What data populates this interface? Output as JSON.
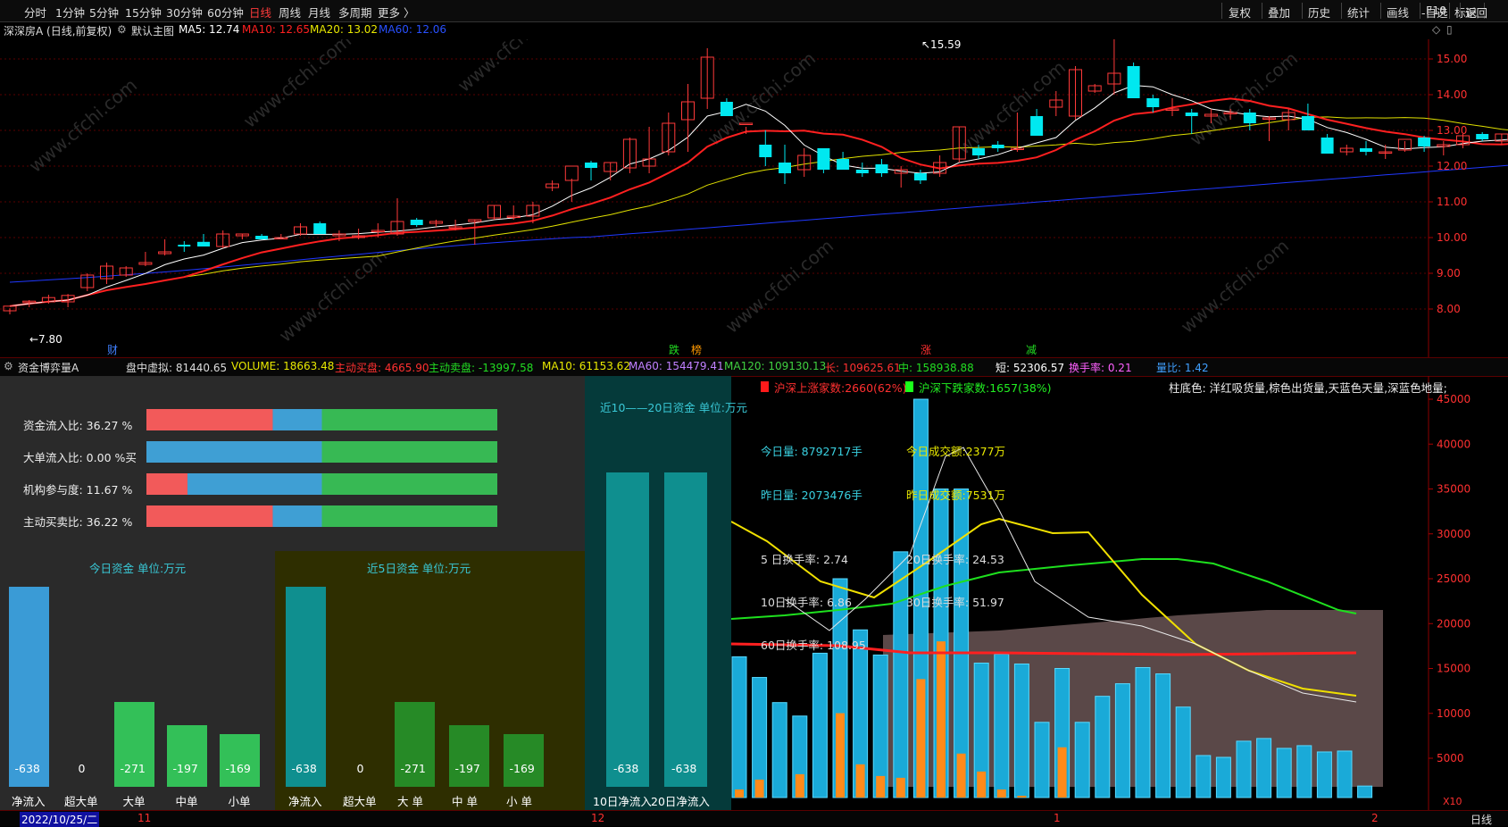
{
  "menu": {
    "tabs": [
      "分时",
      "1分钟",
      "5分钟",
      "15分钟",
      "30分钟",
      "60分钟",
      "日线",
      "周线",
      "月线",
      "多周期",
      "更多 〉"
    ],
    "active_tab": "日线",
    "right_buttons": [
      "复权",
      "叠加",
      "历史",
      "统计",
      "画线",
      "F10",
      "标记",
      "-自选",
      "返回"
    ]
  },
  "info": {
    "stock_title": "深深房A (日线,前复权)",
    "main_chart_label": "默认主图",
    "ma5": "MA5: 12.74",
    "ma10": "MA10: 12.65",
    "ma20": "MA20: 13.02",
    "ma60": "MA60: 12.06",
    "colors": {
      "ma5": "#ffffff",
      "ma10": "#ff2020",
      "ma20": "#e8e800",
      "ma60": "#2038ff"
    }
  },
  "price_axis": [
    "15.00",
    "14.00",
    "13.00",
    "12.00",
    "11.00",
    "10.00",
    "9.00",
    "8.00"
  ],
  "annotations": {
    "high": "15.59",
    "low": "7.80",
    "markers": [
      "财",
      "跌",
      "榜",
      "涨",
      "减"
    ]
  },
  "volume_bar": {
    "name": "资金博弈量A",
    "virtual": "盘中虚拟: 81440.65",
    "volume": "VOLUME: 18663.48",
    "active_buy": "主动买盘: 4665.90",
    "active_sell": "主动卖盘: -13997.58",
    "ma10": "MA10: 61153.62",
    "ma60": "MA60: 154479.41",
    "ma120": "MA120: 109130.13",
    "long": "长: 109625.61",
    "mid": "中: 158938.88",
    "short": "短: 52306.57",
    "turnover": "换手率: 0.21",
    "volume_ratio": "量比: 1.42"
  },
  "ratios": [
    {
      "label": "资金流入比: 36.27 %",
      "red": 0.36,
      "blue": 0.14
    },
    {
      "label": "大单流入比: 0.00 %买",
      "red": 0.0,
      "blue": 0.5
    },
    {
      "label": "机构参与度: 11.67 %",
      "red": 0.117,
      "blue": 0.383
    },
    {
      "label": "主动买卖比: 36.22 %",
      "red": 0.36,
      "blue": 0.14
    }
  ],
  "today_panel": {
    "title": "今日资金  单位:万元",
    "bars": [
      {
        "value": "-638",
        "label": "净流入",
        "level": 1.0
      },
      {
        "value": "0",
        "label": "超大单",
        "level": 0
      },
      {
        "value": "-271",
        "label": "大单",
        "level": 0.425
      },
      {
        "value": "-197",
        "label": "中单",
        "level": 0.309
      },
      {
        "value": "-169",
        "label": "小单",
        "level": 0.265
      }
    ]
  },
  "five_panel": {
    "title": "近5日资金  单位:万元",
    "bars": [
      {
        "value": "-638",
        "label": "净流入",
        "level": 1.0
      },
      {
        "value": "0",
        "label": "超大单",
        "level": 0
      },
      {
        "value": "-271",
        "label": "大 单",
        "level": 0.425
      },
      {
        "value": "-197",
        "label": "中 单",
        "level": 0.309
      },
      {
        "value": "-169",
        "label": "小 单",
        "level": 0.265
      }
    ]
  },
  "ten_panel": {
    "title": "近10——20日资金  单位:万元",
    "bars": [
      {
        "value": "-638",
        "label": "10日净流入",
        "level": 1.0
      },
      {
        "value": "-638",
        "label": "20日净流入",
        "level": 1.0
      }
    ]
  },
  "market_stats": {
    "up_count": "沪深上涨家数:2660(62%)",
    "down_count": "沪深下跌家数:1657(38%)",
    "legend": "柱底色: 洋红吸货量,棕色出货量,天蓝色天量,深蓝色地量;",
    "today_volume": "今日量: 8792717手",
    "today_amount": "今日成交额:2377万",
    "yesterday_volume": "昨日量: 2073476手",
    "yesterday_amount": "昨日成交额:7531万",
    "turnover5": "5 日换手率:  2.74",
    "turnover20": "20日换手率:  24.53",
    "turnover10": "10日换手率:  6.86",
    "turnover30": "30日换手率:  51.97",
    "turnover60": "60日换手率:  108.95"
  },
  "volume_axis": [
    "45000",
    "40000",
    "35000",
    "30000",
    "25000",
    "20000",
    "15000",
    "10000",
    "5000"
  ],
  "volume_axis_unit": "X10",
  "bottom": {
    "date": "2022/10/25/二",
    "month_marks": [
      "11",
      "12",
      "1",
      "2"
    ],
    "period": "日线"
  }
}
